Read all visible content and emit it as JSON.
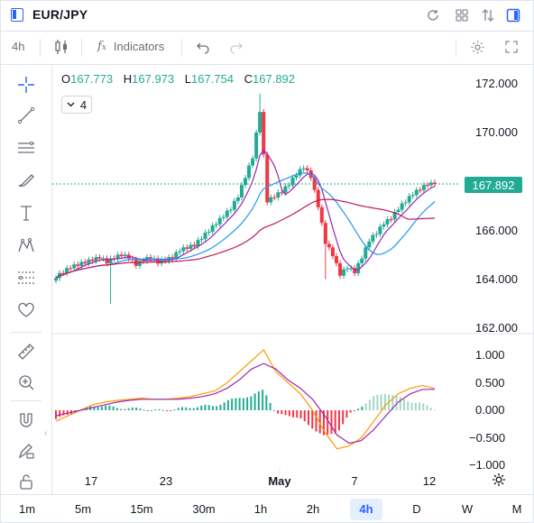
{
  "window": {
    "symbol": "EUR/JPY"
  },
  "toolbar": {
    "interval": "4h",
    "indicators_label": "Indicators"
  },
  "legend": {
    "open_key": "O",
    "open": "167.773",
    "high_key": "H",
    "high": "167.973",
    "low_key": "L",
    "low": "167.754",
    "close_key": "C",
    "close": "167.892",
    "indicator_count": "4"
  },
  "price_tag": "167.892",
  "price_axis": [
    "172.000",
    "170.000",
    "168.000",
    "166.000",
    "164.000",
    "162.000"
  ],
  "macd_axis": [
    "1.000",
    "0.500",
    "0.000",
    "−0.500",
    "−1.000"
  ],
  "time_axis": [
    "17",
    "23",
    "May",
    "7",
    "12"
  ],
  "timeframes": [
    "1m",
    "5m",
    "15m",
    "30m",
    "1h",
    "2h",
    "4h",
    "D",
    "W",
    "M"
  ],
  "active_timeframe": "4h",
  "colors": {
    "up": "#22ab94",
    "down": "#f23645",
    "accent": "#2962ff",
    "ma_fast": "#9c27b0",
    "ma_mid": "#2196f3",
    "ma_slow": "#c2185b",
    "signal": "#ff9800"
  },
  "chart_data": [
    {
      "type": "candlestick",
      "title": "EUR/JPY",
      "ylim": [
        162,
        172
      ],
      "x_ticks": [
        "17",
        "23",
        "May",
        "7",
        "12"
      ],
      "close_path": [
        164.1,
        164.3,
        164.5,
        164.6,
        164.7,
        164.8,
        164.9,
        164.7,
        164.9,
        165.0,
        164.9,
        164.6,
        164.8,
        164.9,
        164.7,
        164.8,
        164.9,
        165.2,
        165.3,
        165.4,
        165.7,
        166.0,
        166.3,
        166.6,
        166.9,
        167.4,
        168.2,
        169.0,
        170.9,
        167.2,
        167.4,
        167.6,
        167.9,
        168.3,
        168.6,
        168.2,
        167.0,
        165.5,
        165.0,
        164.2,
        164.5,
        164.3,
        164.9,
        165.6,
        165.9,
        166.3,
        166.5,
        166.9,
        167.2,
        167.5,
        167.7,
        167.9,
        167.9
      ],
      "series": [
        {
          "name": "Close",
          "values": [
            164.1,
            164.3,
            164.5,
            164.6,
            164.7,
            164.8,
            164.9,
            164.7,
            164.9,
            165.0,
            164.9,
            164.6,
            164.8,
            164.9,
            164.7,
            164.8,
            164.9,
            165.2,
            165.3,
            165.4,
            165.7,
            166.0,
            166.3,
            166.6,
            166.9,
            167.4,
            168.2,
            169.0,
            170.9,
            167.2,
            167.4,
            167.6,
            167.9,
            168.3,
            168.6,
            168.2,
            167.0,
            165.5,
            165.0,
            164.2,
            164.5,
            164.3,
            164.9,
            165.6,
            165.9,
            166.3,
            166.5,
            166.9,
            167.2,
            167.5,
            167.7,
            167.9,
            167.9
          ]
        }
      ],
      "last_price": 167.892
    },
    {
      "type": "line",
      "title": "",
      "ylim": [
        -1.0,
        1.0
      ],
      "series": [
        {
          "name": "",
          "values": [
            -0.2,
            -0.1,
            0.0,
            0.1,
            0.15,
            0.18,
            0.2,
            0.22,
            0.2,
            0.2,
            0.22,
            0.25,
            0.3,
            0.35,
            0.5,
            0.7,
            0.9,
            1.1,
            0.7,
            0.5,
            0.3,
            0.0,
            -0.4,
            -0.7,
            -0.65,
            -0.5,
            -0.2,
            0.1,
            0.3,
            0.4,
            0.45,
            0.4
          ]
        },
        {
          "name": "",
          "values": [
            -0.1,
            -0.05,
            0.0,
            0.05,
            0.1,
            0.15,
            0.18,
            0.2,
            0.2,
            0.2,
            0.2,
            0.22,
            0.25,
            0.3,
            0.4,
            0.55,
            0.75,
            0.85,
            0.75,
            0.55,
            0.4,
            0.2,
            -0.1,
            -0.45,
            -0.6,
            -0.55,
            -0.35,
            -0.1,
            0.15,
            0.3,
            0.38,
            0.38
          ]
        }
      ]
    }
  ]
}
